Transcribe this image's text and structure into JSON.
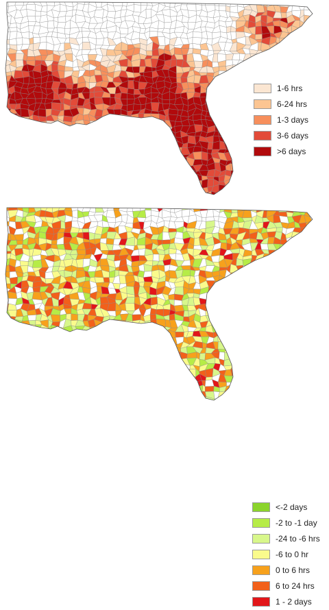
{
  "maps": [
    {
      "id": "duration",
      "legend": [
        {
          "label": "1-6 hrs",
          "color": "#fbe6d2"
        },
        {
          "label": "6-24 hrs",
          "color": "#fcc592"
        },
        {
          "label": "1-3 days",
          "color": "#f78f5c"
        },
        {
          "label": "3-6 days",
          "color": "#e24b39"
        },
        {
          "label": ">6 days",
          "color": "#b10a0c"
        }
      ],
      "fill_colors": [
        "#ffffff",
        "#fbe6d2",
        "#fcc592",
        "#f78f5c",
        "#e24b39",
        "#b10a0c"
      ]
    },
    {
      "id": "difference",
      "legend": [
        {
          "label": "<-2 days",
          "color": "#8bd42c"
        },
        {
          "label": "-2 to -1 day",
          "color": "#b6ec47"
        },
        {
          "label": "-24 to -6 hrs",
          "color": "#d8f78b"
        },
        {
          "label": "-6 to 0 hr",
          "color": "#fafb8c"
        },
        {
          "label": "0 to 6 hrs",
          "color": "#f7a11c"
        },
        {
          "label": "6 to 24 hrs",
          "color": "#f2601a"
        },
        {
          "label": "1 - 2 days",
          "color": "#e2161a"
        }
      ],
      "fill_colors": [
        "#ffffff",
        "#f7a11c",
        "#fafb8c",
        "#f2601a",
        "#d8f78b",
        "#b6ec47",
        "#e2161a"
      ]
    }
  ]
}
